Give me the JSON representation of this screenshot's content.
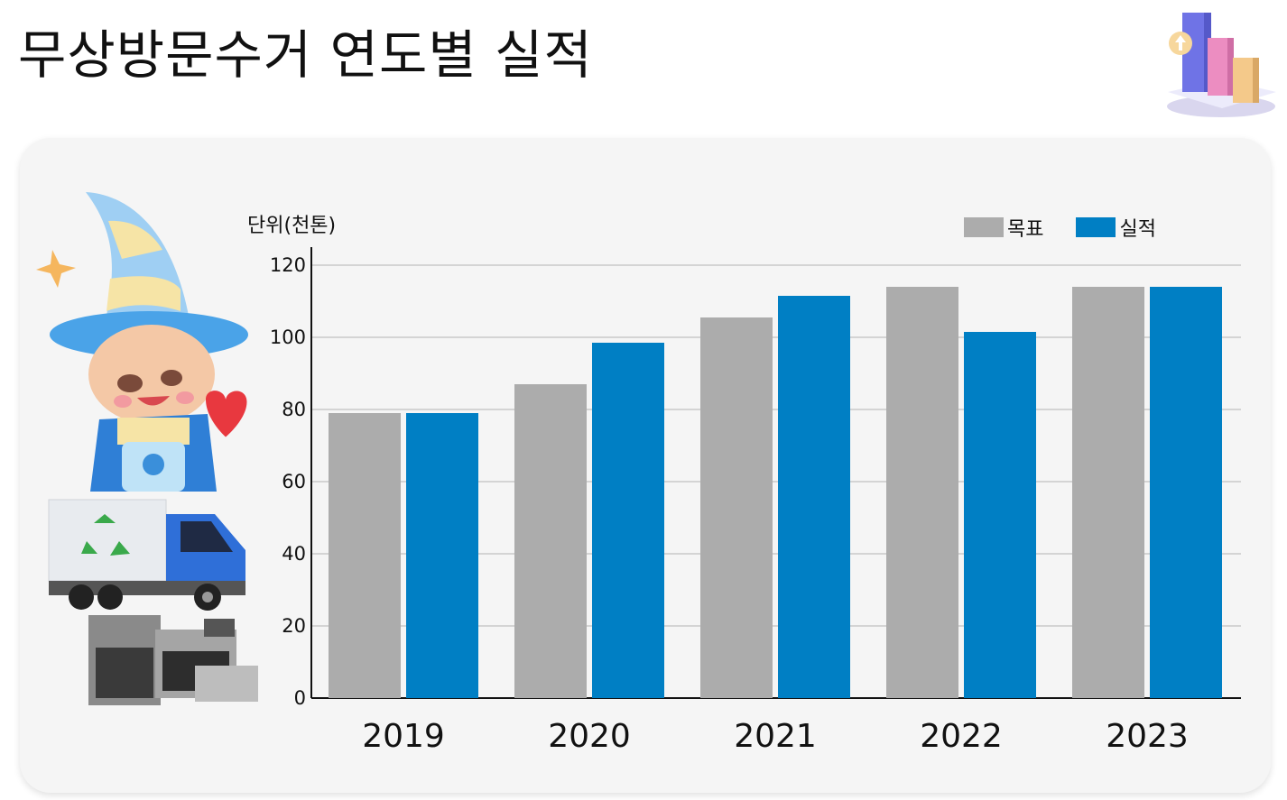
{
  "page": {
    "title": "무상방문수거 연도별 실적"
  },
  "chart_data": {
    "type": "bar",
    "unit_label": "단위(천톤)",
    "categories": [
      "2019",
      "2020",
      "2021",
      "2022",
      "2023"
    ],
    "series": [
      {
        "name": "목표",
        "color": "#acacac",
        "values": [
          79,
          87,
          105.5,
          114,
          114
        ]
      },
      {
        "name": "실적",
        "color": "#007fc4",
        "values": [
          79,
          98.5,
          111.5,
          101.5,
          114
        ]
      }
    ],
    "ylim": [
      0,
      120
    ],
    "yticks": [
      "0",
      "20",
      "40",
      "60",
      "80",
      "100",
      "120"
    ],
    "grid": true,
    "legend_position": "top-right"
  },
  "icons": [
    "chart-bars-icon",
    "mascot-character-icon",
    "recycling-truck-icon",
    "appliances-icon"
  ]
}
